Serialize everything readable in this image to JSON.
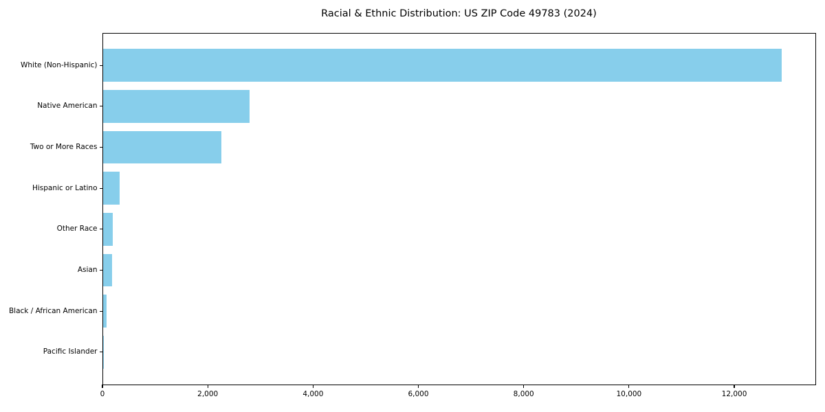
{
  "chart_data": {
    "type": "bar",
    "orientation": "horizontal",
    "title": "Racial & Ethnic Distribution: US ZIP Code 49783 (2024)",
    "categories": [
      "White (Non-Hispanic)",
      "Native American",
      "Two or More Races",
      "Hispanic or Latino",
      "Other Race",
      "Asian",
      "Black / African American",
      "Pacific Islander"
    ],
    "values": [
      12890,
      2780,
      2250,
      310,
      180,
      165,
      65,
      10
    ],
    "xlabel": "",
    "ylabel": "",
    "xlim": [
      0,
      13540
    ],
    "x_ticks": [
      0,
      2000,
      4000,
      6000,
      8000,
      10000,
      12000
    ],
    "x_tick_labels": [
      "0",
      "2,000",
      "4,000",
      "6,000",
      "8,000",
      "10,000",
      "12,000"
    ],
    "bar_color": "#87CEEB",
    "axis_color": "#000000",
    "text_color": "#000000",
    "grid": false,
    "legend": null
  }
}
